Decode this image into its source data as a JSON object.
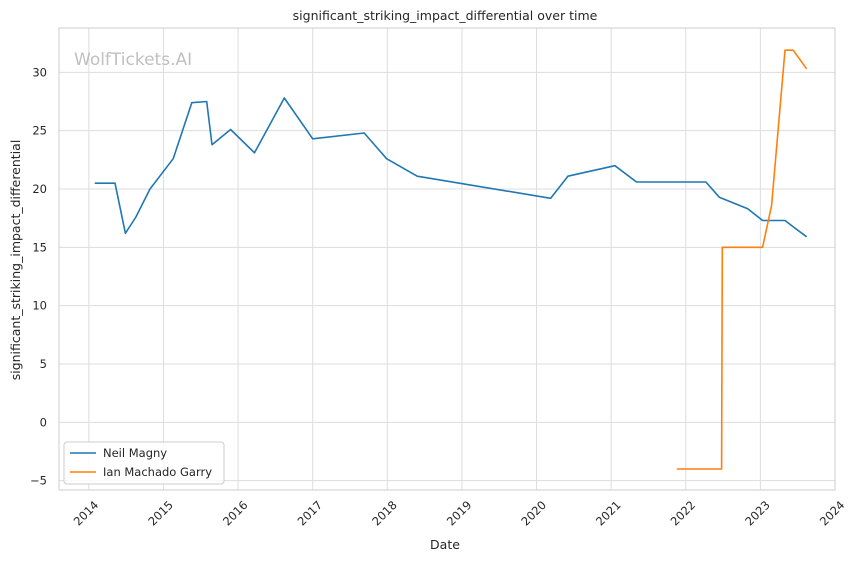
{
  "chart_data": {
    "type": "line",
    "title": "significant_striking_impact_differential over time",
    "xlabel": "Date",
    "ylabel": "significant_striking_impact_differential",
    "watermark": "WolfTickets.AI",
    "xlim": [
      2013.6,
      2024.0
    ],
    "ylim": [
      -5.8,
      33.8
    ],
    "x_ticks": [
      2014,
      2015,
      2016,
      2017,
      2018,
      2019,
      2020,
      2021,
      2022,
      2023,
      2024
    ],
    "x_tick_labels": [
      "2014",
      "2015",
      "2016",
      "2017",
      "2018",
      "2019",
      "2020",
      "2021",
      "2022",
      "2023",
      "2024"
    ],
    "y_ticks": [
      -5,
      0,
      5,
      10,
      15,
      20,
      25,
      30
    ],
    "y_tick_labels": [
      "−5",
      "0",
      "5",
      "10",
      "15",
      "20",
      "25",
      "30"
    ],
    "grid": true,
    "legend_position": "lower-left",
    "series": [
      {
        "name": "Neil Magny",
        "color": "#1f77b4",
        "x": [
          2014.08,
          2014.35,
          2014.49,
          2014.63,
          2014.82,
          2015.13,
          2015.38,
          2015.58,
          2015.65,
          2015.9,
          2016.22,
          2016.62,
          2017.0,
          2017.69,
          2017.99,
          2018.4,
          2020.19,
          2020.42,
          2020.63,
          2021.05,
          2021.34,
          2022.27,
          2022.45,
          2022.83,
          2023.03,
          2023.33,
          2023.43,
          2023.62
        ],
        "y": [
          20.5,
          20.5,
          16.2,
          17.6,
          20.0,
          22.6,
          27.4,
          27.5,
          23.8,
          25.1,
          23.1,
          27.8,
          24.3,
          24.8,
          22.6,
          21.1,
          19.2,
          21.1,
          21.4,
          22.0,
          20.6,
          20.6,
          19.3,
          18.3,
          17.3,
          17.3,
          16.8,
          15.9
        ]
      },
      {
        "name": "Ian Machado Garry",
        "color": "#ff7f0e",
        "x": [
          2021.88,
          2022.35,
          2022.48,
          2022.49,
          2023.03,
          2023.15,
          2023.33,
          2023.44,
          2023.62
        ],
        "y": [
          -4.0,
          -4.0,
          -4.0,
          15.0,
          15.0,
          18.6,
          31.9,
          31.9,
          30.3
        ]
      }
    ]
  }
}
